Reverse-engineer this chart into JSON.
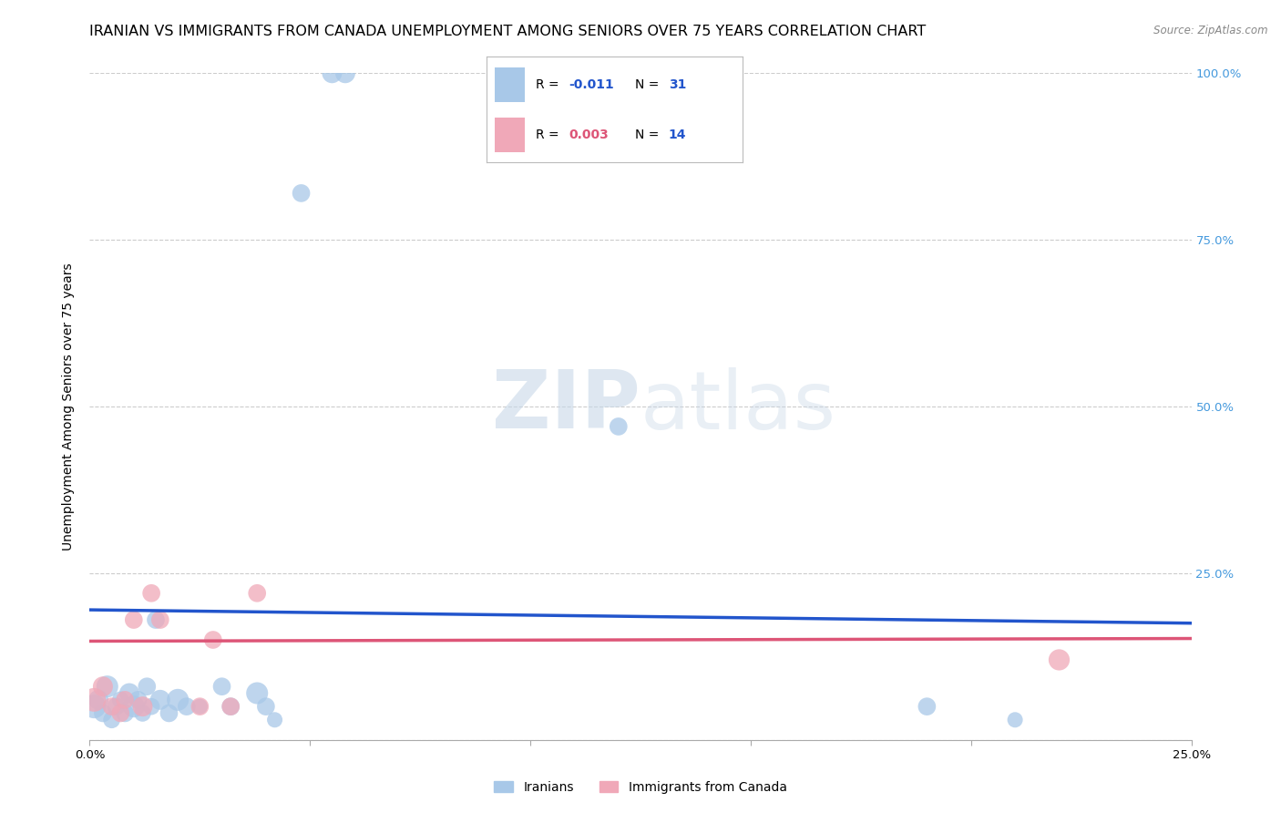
{
  "title": "IRANIAN VS IMMIGRANTS FROM CANADA UNEMPLOYMENT AMONG SENIORS OVER 75 YEARS CORRELATION CHART",
  "source": "Source: ZipAtlas.com",
  "ylabel": "Unemployment Among Seniors over 75 years",
  "xlim": [
    0.0,
    0.25
  ],
  "ylim": [
    0.0,
    1.0
  ],
  "xticks": [
    0.0,
    0.05,
    0.1,
    0.15,
    0.2,
    0.25
  ],
  "xticklabels": [
    "0.0%",
    "",
    "",
    "",
    "",
    "25.0%"
  ],
  "yticks": [
    0.0,
    0.25,
    0.5,
    0.75,
    1.0
  ],
  "yticklabels_right": [
    "",
    "25.0%",
    "50.0%",
    "75.0%",
    "100.0%"
  ],
  "blue_color": "#a8c8e8",
  "pink_color": "#f0a8b8",
  "blue_line_color": "#2255cc",
  "pink_line_color": "#dd5577",
  "iranians_x": [
    0.001,
    0.002,
    0.003,
    0.004,
    0.005,
    0.006,
    0.007,
    0.008,
    0.009,
    0.01,
    0.011,
    0.012,
    0.013,
    0.014,
    0.015,
    0.016,
    0.018,
    0.02,
    0.022,
    0.025,
    0.03,
    0.032,
    0.038,
    0.04,
    0.042,
    0.048,
    0.055,
    0.058,
    0.12,
    0.19,
    0.21
  ],
  "iranians_y": [
    0.05,
    0.06,
    0.04,
    0.08,
    0.03,
    0.05,
    0.06,
    0.04,
    0.07,
    0.05,
    0.06,
    0.04,
    0.08,
    0.05,
    0.18,
    0.06,
    0.04,
    0.06,
    0.05,
    0.05,
    0.08,
    0.05,
    0.07,
    0.05,
    0.03,
    0.82,
    1.0,
    1.0,
    0.47,
    0.05,
    0.03
  ],
  "iranians_size": [
    350,
    250,
    200,
    300,
    180,
    200,
    180,
    200,
    250,
    300,
    200,
    180,
    200,
    180,
    200,
    250,
    200,
    300,
    200,
    150,
    200,
    200,
    300,
    200,
    150,
    200,
    250,
    250,
    200,
    200,
    150
  ],
  "canada_x": [
    0.001,
    0.003,
    0.005,
    0.007,
    0.008,
    0.01,
    0.012,
    0.014,
    0.016,
    0.025,
    0.028,
    0.032,
    0.038,
    0.22
  ],
  "canada_y": [
    0.06,
    0.08,
    0.05,
    0.04,
    0.06,
    0.18,
    0.05,
    0.22,
    0.18,
    0.05,
    0.15,
    0.05,
    0.22,
    0.12
  ],
  "canada_size": [
    350,
    250,
    200,
    200,
    200,
    200,
    250,
    200,
    200,
    200,
    200,
    200,
    200,
    280
  ],
  "blue_trendline_x": [
    0.0,
    0.25
  ],
  "blue_trendline_y": [
    0.195,
    0.175
  ],
  "pink_trendline_x": [
    0.0,
    0.25
  ],
  "pink_trendline_y": [
    0.148,
    0.152
  ],
  "legend_R_blue": "-0.011",
  "legend_N_blue": "31",
  "legend_R_pink": "0.003",
  "legend_N_pink": "14",
  "legend_labels": [
    "Iranians",
    "Immigrants from Canada"
  ],
  "title_fontsize": 11.5,
  "axis_label_fontsize": 10,
  "tick_fontsize": 9.5,
  "right_tick_color": "#4499dd",
  "background_color": "#ffffff",
  "grid_color": "#cccccc"
}
